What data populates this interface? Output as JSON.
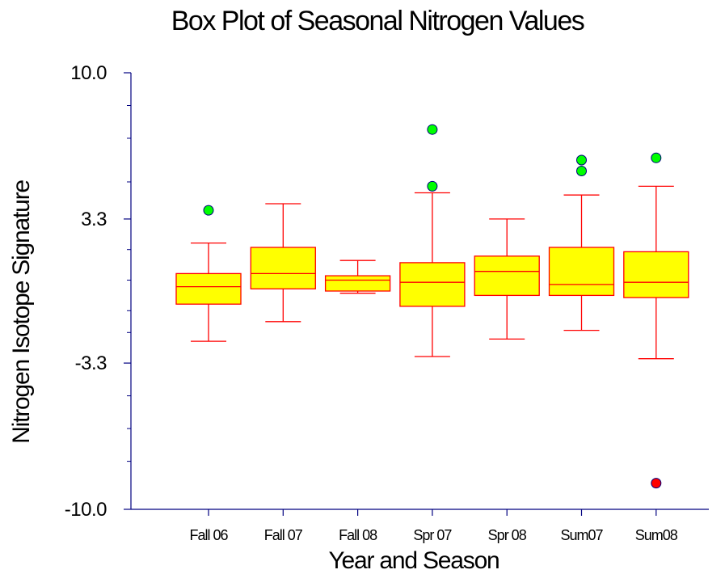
{
  "chart_data": {
    "type": "box",
    "title": "Box Plot of Seasonal Nitrogen Values",
    "xlabel": "Year and Season",
    "ylabel": "Nitrogen Isotope Signature",
    "ylim": [
      -10.0,
      10.0
    ],
    "yticks": [
      {
        "value": 10.0,
        "label": "10.0"
      },
      {
        "value": 3.3,
        "label": "3.3"
      },
      {
        "value": -3.3,
        "label": "-3.3"
      },
      {
        "value": -10.0,
        "label": "-10.0"
      }
    ],
    "minor_yticks": [
      8.5,
      7.0,
      5.0,
      1.9,
      0.5,
      -0.9,
      -1.9,
      -4.8,
      -6.3,
      -7.8
    ],
    "categories": [
      "Fall 06",
      "Fall 07",
      "Fall 08",
      "Spr 07",
      "Spr 08",
      "Sum07",
      "Sum08"
    ],
    "boxes": [
      {
        "category": "Fall 06",
        "whisker_low": -2.3,
        "q1": -0.6,
        "median": 0.2,
        "q3": 0.8,
        "whisker_high": 2.2,
        "outliers": [
          {
            "value": 3.7,
            "color": "#00ff00"
          }
        ]
      },
      {
        "category": "Fall 07",
        "whisker_low": -1.4,
        "q1": 0.1,
        "median": 0.8,
        "q3": 2.0,
        "whisker_high": 4.0,
        "outliers": []
      },
      {
        "category": "Fall 08",
        "whisker_low": -0.1,
        "q1": 0.0,
        "median": 0.5,
        "q3": 0.7,
        "whisker_high": 1.4,
        "outliers": []
      },
      {
        "category": "Spr 07",
        "whisker_low": -3.0,
        "q1": -0.7,
        "median": 0.4,
        "q3": 1.3,
        "whisker_high": 4.5,
        "outliers": [
          {
            "value": 7.4,
            "color": "#00ff00"
          },
          {
            "value": 4.8,
            "color": "#00ff00"
          }
        ]
      },
      {
        "category": "Spr 08",
        "whisker_low": -2.2,
        "q1": -0.2,
        "median": 0.9,
        "q3": 1.6,
        "whisker_high": 3.3,
        "outliers": []
      },
      {
        "category": "Sum07",
        "whisker_low": -1.8,
        "q1": -0.2,
        "median": 0.3,
        "q3": 2.0,
        "whisker_high": 4.4,
        "outliers": [
          {
            "value": 6.0,
            "color": "#00ff00"
          },
          {
            "value": 5.5,
            "color": "#00ff00"
          }
        ]
      },
      {
        "category": "Sum08",
        "whisker_low": -3.1,
        "q1": -0.3,
        "median": 0.4,
        "q3": 1.8,
        "whisker_high": 4.8,
        "outliers": [
          {
            "value": 6.1,
            "color": "#00ff00"
          },
          {
            "value": -8.8,
            "color": "#ff0000"
          }
        ]
      }
    ],
    "box_fill": "#ffff00",
    "box_stroke": "#ff0000",
    "axis_color": "#000080",
    "grid": false,
    "legend": "none"
  }
}
